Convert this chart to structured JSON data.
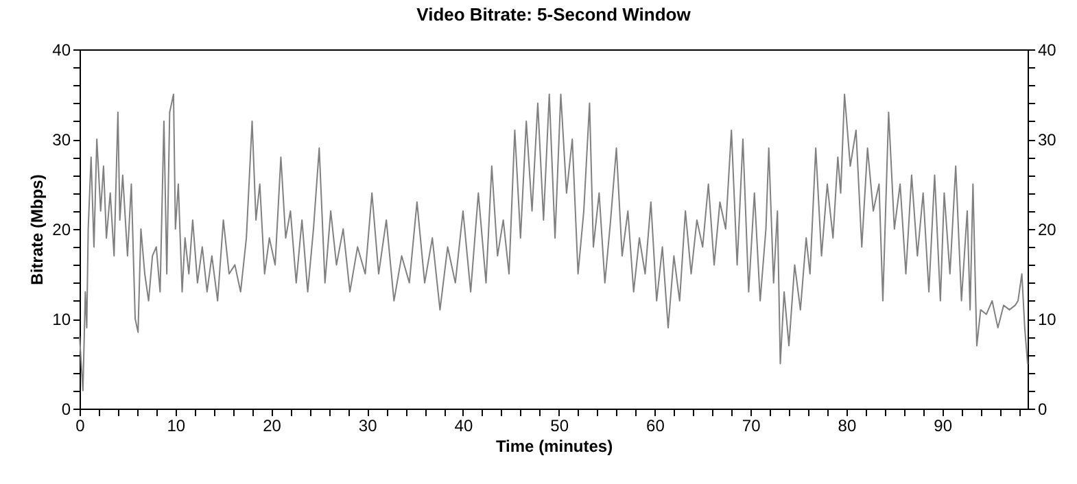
{
  "chart_data": {
    "type": "line",
    "title": "Video Bitrate: 5-Second Window",
    "xlabel": "Time (minutes)",
    "ylabel": "Bitrate (Mbps)",
    "x": [
      0,
      0.35,
      0.6,
      0.75,
      0.9,
      1.2,
      1.5,
      1.8,
      2.2,
      2.5,
      2.8,
      3.2,
      3.6,
      4,
      4.2,
      4.5,
      5,
      5.4,
      5.8,
      6.1,
      6.4,
      6.8,
      7.2,
      7.6,
      8,
      8.4,
      8.8,
      9.1,
      9.4,
      9.8,
      10,
      10.3,
      10.7,
      11,
      11.4,
      11.8,
      12.3,
      12.8,
      13.3,
      13.8,
      14.4,
      15,
      15.6,
      16.2,
      16.8,
      17.4,
      18,
      18.4,
      18.8,
      19.3,
      19.8,
      20.4,
      21,
      21.5,
      22,
      22.6,
      23.2,
      23.8,
      24.4,
      25,
      25.6,
      26.2,
      26.8,
      27.5,
      28.2,
      29,
      29.8,
      30.5,
      31.2,
      32,
      32.8,
      33.6,
      34.4,
      35.2,
      36,
      36.8,
      37.6,
      38.4,
      39.2,
      40,
      40.8,
      41.6,
      42.4,
      43,
      43.6,
      44.2,
      44.8,
      45.4,
      46,
      46.6,
      47.2,
      47.8,
      48.4,
      49,
      49.6,
      50.2,
      50.8,
      51.4,
      52,
      52.6,
      53.2,
      53.6,
      54.2,
      54.8,
      55.4,
      56,
      56.6,
      57.2,
      57.8,
      58.4,
      59,
      59.6,
      60.2,
      60.8,
      61.4,
      62,
      62.6,
      63.2,
      63.8,
      64.4,
      65,
      65.6,
      66.2,
      66.8,
      67.4,
      68,
      68.6,
      69.2,
      69.8,
      70.4,
      71,
      71.6,
      71.9,
      72.4,
      72.8,
      73.1,
      73.5,
      74,
      74.6,
      75.2,
      75.8,
      76.2,
      76.8,
      77.4,
      78,
      78.6,
      79.1,
      79.4,
      79.8,
      80.4,
      81,
      81.6,
      82.2,
      82.8,
      83.4,
      83.8,
      84.4,
      85,
      85.6,
      86.2,
      86.8,
      87.4,
      88,
      88.6,
      89.2,
      89.8,
      90.2,
      90.8,
      91.4,
      92,
      92.6,
      92.9,
      93.2,
      93.6,
      94,
      94.6,
      95.2,
      95.8,
      96.4,
      97,
      97.6,
      97.9,
      98.3,
      98.6,
      98.9
    ],
    "series": [
      {
        "color": "#808080",
        "values": [
          8,
          2,
          13,
          9,
          20,
          28,
          18,
          30,
          22,
          27,
          19,
          24,
          17,
          33,
          21,
          26,
          17,
          25,
          10,
          8.5,
          20,
          15,
          12,
          17,
          18,
          13,
          32,
          15,
          33,
          35,
          20,
          25,
          13,
          19,
          15,
          21,
          14,
          18,
          13,
          17,
          12,
          21,
          15,
          16,
          13,
          19,
          32,
          21,
          25,
          15,
          19,
          16,
          28,
          19,
          22,
          14,
          21,
          13,
          20,
          29,
          14,
          22,
          16,
          20,
          13,
          18,
          15,
          24,
          15,
          21,
          12,
          17,
          14,
          23,
          14,
          19,
          11,
          18,
          14,
          22,
          13,
          24,
          14,
          27,
          17,
          21,
          15,
          31,
          19,
          32,
          22,
          34,
          21,
          35,
          19,
          35,
          24,
          30,
          15,
          22,
          34,
          18,
          24,
          14,
          21,
          29,
          17,
          22,
          13,
          19,
          15,
          23,
          12,
          18,
          9,
          17,
          12,
          22,
          15,
          21,
          18,
          25,
          16,
          23,
          20,
          31,
          16,
          30,
          13,
          24,
          12,
          20,
          29,
          14,
          22,
          5,
          13,
          7,
          16,
          11,
          19,
          15,
          29,
          17,
          25,
          19,
          28,
          24,
          35,
          27,
          31,
          18,
          29,
          22,
          25,
          12,
          33,
          20,
          25,
          15,
          26,
          17,
          24,
          13,
          26,
          12,
          24,
          15,
          27,
          12,
          22,
          11,
          25,
          7,
          11,
          10.5,
          12,
          9,
          11.5,
          11,
          11.5,
          12,
          15,
          9,
          5
        ]
      }
    ],
    "xlim": [
      0,
      98.9
    ],
    "xticks": [
      0,
      {
        "value": 2,
        "label": null
      },
      {
        "value": 4,
        "label": null
      },
      {
        "value": 6,
        "label": null
      },
      {
        "value": 8,
        "label": null
      },
      10,
      {
        "value": 12,
        "label": null
      },
      {
        "value": 14,
        "label": null
      },
      {
        "value": 16,
        "label": null
      },
      {
        "value": 18,
        "label": null
      },
      20,
      {
        "value": 22,
        "label": null
      },
      {
        "value": 24,
        "label": null
      },
      {
        "value": 26,
        "label": null
      },
      {
        "value": 28,
        "label": null
      },
      30,
      {
        "value": 32,
        "label": null
      },
      {
        "value": 34,
        "label": null
      },
      {
        "value": 36,
        "label": null
      },
      {
        "value": 38,
        "label": null
      },
      40,
      {
        "value": 42,
        "label": null
      },
      {
        "value": 44,
        "label": null
      },
      {
        "value": 46,
        "label": null
      },
      {
        "value": 48,
        "label": null
      },
      50,
      {
        "value": 52,
        "label": null
      },
      {
        "value": 54,
        "label": null
      },
      {
        "value": 56,
        "label": null
      },
      {
        "value": 58,
        "label": null
      },
      60,
      {
        "value": 62,
        "label": null
      },
      {
        "value": 64,
        "label": null
      },
      {
        "value": 66,
        "label": null
      },
      {
        "value": 68,
        "label": null
      },
      70,
      {
        "value": 72,
        "label": null
      },
      {
        "value": 74,
        "label": null
      },
      {
        "value": 76,
        "label": null
      },
      {
        "value": 78,
        "label": null
      },
      80,
      {
        "value": 82,
        "label": null
      },
      {
        "value": 84,
        "label": null
      },
      {
        "value": 86,
        "label": null
      },
      {
        "value": 88,
        "label": null
      },
      90,
      {
        "value": 92,
        "label": null
      },
      {
        "value": 94,
        "label": null
      },
      {
        "value": 96,
        "label": null
      },
      {
        "value": 98,
        "label": null
      }
    ],
    "ylim": [
      0,
      40
    ],
    "yticks": [
      0,
      {
        "value": 2,
        "label": null
      },
      {
        "value": 4,
        "label": null
      },
      {
        "value": 6,
        "label": null
      },
      {
        "value": 8,
        "label": null
      },
      10,
      {
        "value": 12,
        "label": null
      },
      {
        "value": 14,
        "label": null
      },
      {
        "value": 16,
        "label": null
      },
      {
        "value": 18,
        "label": null
      },
      20,
      {
        "value": 22,
        "label": null
      },
      {
        "value": 24,
        "label": null
      },
      {
        "value": 26,
        "label": null
      },
      {
        "value": 28,
        "label": null
      },
      30,
      {
        "value": 32,
        "label": null
      },
      {
        "value": 34,
        "label": null
      },
      {
        "value": 36,
        "label": null
      },
      {
        "value": 38,
        "label": null
      },
      40
    ],
    "y2lim": [
      0,
      40
    ],
    "y2ticks": [
      0,
      {
        "value": 2,
        "label": null
      },
      {
        "value": 4,
        "label": null
      },
      {
        "value": 6,
        "label": null
      },
      {
        "value": 8,
        "label": null
      },
      10,
      {
        "value": 12,
        "label": null
      },
      {
        "value": 14,
        "label": null
      },
      {
        "value": 16,
        "label": null
      },
      {
        "value": 18,
        "label": null
      },
      20,
      {
        "value": 22,
        "label": null
      },
      {
        "value": 24,
        "label": null
      },
      {
        "value": 26,
        "label": null
      },
      {
        "value": 28,
        "label": null
      },
      30,
      {
        "value": 32,
        "label": null
      },
      {
        "value": 34,
        "label": null
      },
      {
        "value": 36,
        "label": null
      },
      {
        "value": 38,
        "label": null
      },
      40
    ],
    "grid": false,
    "legend": false,
    "marker": "none",
    "line_style": "solid"
  }
}
